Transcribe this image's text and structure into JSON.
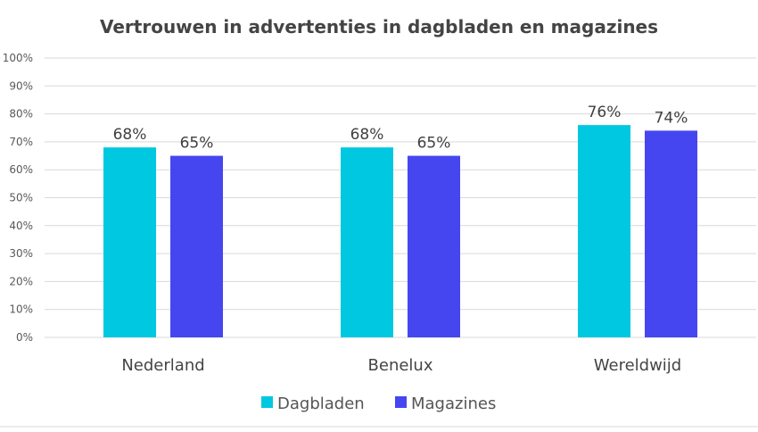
{
  "chart_data": {
    "type": "bar",
    "title": "Vertrouwen in advertenties in dagbladen en magazines",
    "categories": [
      "Nederland",
      "Benelux",
      "Wereldwijd"
    ],
    "series": [
      {
        "name": "Dagbladen",
        "values": [
          68,
          68,
          76
        ],
        "labels": [
          "68%",
          "68%",
          "76%"
        ],
        "color": "#00c8e0"
      },
      {
        "name": "Magazines",
        "values": [
          65,
          65,
          74
        ],
        "labels": [
          "65%",
          "65%",
          "74%"
        ],
        "color": "#4646f0"
      }
    ],
    "ylim": [
      0,
      100
    ],
    "yticks": [
      "0%",
      "10%",
      "20%",
      "30%",
      "40%",
      "50%",
      "60%",
      "70%",
      "80%",
      "90%",
      "100%"
    ],
    "grid": true,
    "legend": "bottom",
    "xlabel": "",
    "ylabel": ""
  }
}
